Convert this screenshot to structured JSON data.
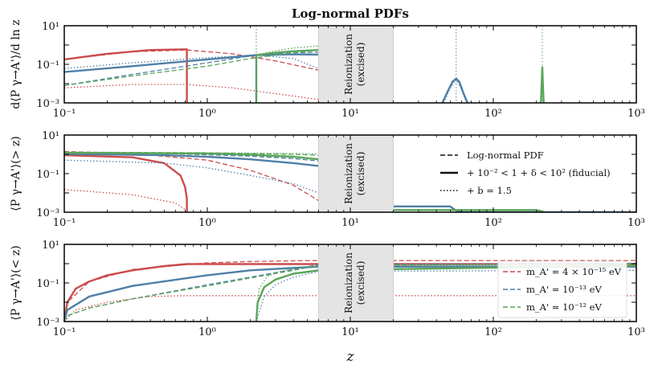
{
  "figure": {
    "title": "Log-normal PDFs",
    "xlabel": "z",
    "reionization_label_1": "Reionization",
    "reionization_label_2": "(excised)"
  },
  "colors": {
    "red": "#cc4c4c",
    "blue": "#4f7fa6",
    "green": "#5aa55a",
    "band": "#e4e4e4"
  },
  "chart_data": [
    {
      "type": "line",
      "panel": "top",
      "ylabel": "d⟨P γ→A'⟩/d ln z",
      "xscale": "log",
      "yscale": "log",
      "xlim": [
        0.1,
        1000
      ],
      "ylim": [
        0.001,
        10
      ],
      "x_ticks": [
        "10⁻¹",
        "10⁰",
        "10¹",
        "10²",
        "10³"
      ],
      "y_ticks": [
        "10⁻³",
        "10⁻¹",
        "10¹"
      ],
      "excised_band": [
        6,
        20
      ],
      "series": [
        {
          "name": "red-solid",
          "color": "red",
          "style": "solid",
          "x": [
            0.1,
            0.2,
            0.4,
            0.72,
            0.72
          ],
          "y": [
            0.18,
            0.35,
            0.55,
            0.6,
            0.001
          ]
        },
        {
          "name": "red-dashed",
          "color": "red",
          "style": "dashed",
          "x": [
            0.1,
            0.3,
            0.72,
            1.5,
            3,
            6
          ],
          "y": [
            0.18,
            0.45,
            0.55,
            0.35,
            0.15,
            0.05
          ]
        },
        {
          "name": "red-dotted",
          "color": "red",
          "style": "dotted",
          "x": [
            0.1,
            0.3,
            0.72,
            1.5,
            3,
            6
          ],
          "y": [
            0.006,
            0.009,
            0.009,
            0.006,
            0.003,
            0.0015
          ]
        },
        {
          "name": "blue-solid",
          "color": "blue",
          "style": "solid",
          "x": [
            0.1,
            0.3,
            1,
            2.2,
            4,
            6
          ],
          "y": [
            0.04,
            0.08,
            0.18,
            0.3,
            0.33,
            0.32
          ]
        },
        {
          "name": "blue-dashed",
          "color": "blue",
          "style": "dashed",
          "x": [
            0.1,
            0.3,
            1,
            2.2,
            4,
            6
          ],
          "y": [
            0.008,
            0.03,
            0.12,
            0.3,
            0.4,
            0.42
          ]
        },
        {
          "name": "blue-dotted",
          "color": "blue",
          "style": "dotted",
          "x": [
            0.1,
            0.3,
            1,
            2.2,
            4,
            6
          ],
          "y": [
            0.06,
            0.12,
            0.22,
            0.3,
            0.2,
            0.06
          ]
        },
        {
          "name": "blue-solid-peak",
          "color": "blue",
          "style": "solid",
          "x": [
            44,
            48,
            52,
            55,
            58,
            62,
            66
          ],
          "y": [
            0.001,
            0.004,
            0.013,
            0.018,
            0.012,
            0.003,
            0.001
          ]
        },
        {
          "name": "blue-dotted-peak",
          "color": "blue",
          "style": "dotted",
          "x": [
            45,
            50,
            55,
            60,
            65
          ],
          "y": [
            0.001,
            0.006,
            0.016,
            0.005,
            0.001
          ]
        },
        {
          "name": "green-solid",
          "color": "green",
          "style": "solid",
          "x": [
            2.2,
            2.2,
            3,
            4,
            6
          ],
          "y": [
            0.001,
            0.3,
            0.4,
            0.48,
            0.55
          ]
        },
        {
          "name": "green-dashed",
          "color": "green",
          "style": "dashed",
          "x": [
            0.1,
            0.3,
            1,
            2,
            4,
            6
          ],
          "y": [
            0.008,
            0.025,
            0.08,
            0.2,
            0.4,
            0.55
          ]
        },
        {
          "name": "green-dotted",
          "color": "green",
          "style": "dotted",
          "x": [
            2.2,
            3,
            4,
            6
          ],
          "y": [
            0.3,
            0.5,
            0.7,
            0.9
          ]
        },
        {
          "name": "green-solid-peak",
          "color": "green",
          "style": "solid",
          "x": [
            215,
            218,
            220,
            222,
            225
          ],
          "y": [
            0.001,
            0.01,
            0.07,
            0.01,
            0.001
          ]
        }
      ],
      "vlines": [
        {
          "x": 2.2,
          "color": "blue",
          "style": "dotted"
        },
        {
          "x": 55,
          "color": "blue",
          "style": "dotted"
        },
        {
          "x": 220,
          "color": "green",
          "style": "dotted"
        }
      ]
    },
    {
      "type": "line",
      "panel": "middle",
      "ylabel": "⟨P γ→A'⟩(> z)",
      "xscale": "log",
      "yscale": "log",
      "xlim": [
        0.1,
        1000
      ],
      "ylim": [
        0.001,
        10
      ],
      "x_ticks": [
        "10⁻¹",
        "10⁰",
        "10¹",
        "10²",
        "10³"
      ],
      "y_ticks": [
        "10⁻³",
        "10⁻¹",
        "10¹"
      ],
      "excised_band": [
        6,
        20
      ],
      "series": [
        {
          "name": "red-solid",
          "color": "red",
          "style": "solid",
          "x": [
            0.1,
            0.3,
            0.5,
            0.65,
            0.7,
            0.72,
            0.72
          ],
          "y": [
            0.9,
            0.7,
            0.35,
            0.08,
            0.02,
            0.005,
            0.001
          ]
        },
        {
          "name": "red-dashed",
          "color": "red",
          "style": "dashed",
          "x": [
            0.1,
            0.3,
            1,
            2,
            4,
            6
          ],
          "y": [
            1.4,
            1.1,
            0.5,
            0.15,
            0.025,
            0.004
          ]
        },
        {
          "name": "red-dotted",
          "color": "red",
          "style": "dotted",
          "x": [
            0.1,
            0.3,
            0.6,
            0.72
          ],
          "y": [
            0.015,
            0.008,
            0.003,
            0.0012
          ]
        },
        {
          "name": "blue-solid",
          "color": "blue",
          "style": "solid",
          "x": [
            0.1,
            0.5,
            1,
            2,
            4,
            6
          ],
          "y": [
            1.05,
            0.9,
            0.75,
            0.55,
            0.35,
            0.25
          ]
        },
        {
          "name": "blue-solid-tail",
          "color": "blue",
          "style": "solid",
          "x": [
            20,
            50,
            55,
            60,
            1000
          ],
          "y": [
            0.002,
            0.002,
            0.0012,
            0.001,
            0.001
          ]
        },
        {
          "name": "blue-dashed",
          "color": "blue",
          "style": "dashed",
          "x": [
            0.1,
            0.5,
            1,
            2,
            4,
            6
          ],
          "y": [
            1.2,
            1.1,
            0.95,
            0.8,
            0.6,
            0.45
          ]
        },
        {
          "name": "blue-dotted",
          "color": "blue",
          "style": "dotted",
          "x": [
            0.1,
            0.5,
            1,
            2,
            4,
            6
          ],
          "y": [
            0.5,
            0.35,
            0.2,
            0.08,
            0.03,
            0.01
          ]
        },
        {
          "name": "green-solid",
          "color": "green",
          "style": "solid",
          "x": [
            0.1,
            1,
            2,
            4,
            6
          ],
          "y": [
            1.2,
            1.1,
            0.95,
            0.75,
            0.55
          ]
        },
        {
          "name": "green-solid-tail",
          "color": "green",
          "style": "solid",
          "x": [
            20,
            200,
            222,
            225
          ],
          "y": [
            0.0013,
            0.0013,
            0.0011,
            0.001
          ]
        },
        {
          "name": "green-dashed",
          "color": "green",
          "style": "dashed",
          "x": [
            0.1,
            1,
            2,
            4,
            6
          ],
          "y": [
            1.3,
            1.2,
            1.1,
            1,
            0.9
          ]
        },
        {
          "name": "green-dotted",
          "color": "green",
          "style": "dotted",
          "x": [
            0.1,
            1,
            2,
            4,
            6
          ],
          "y": [
            1.3,
            1.2,
            1.15,
            1.1,
            1.05
          ]
        }
      ],
      "legend": {
        "location": "right",
        "entries": [
          {
            "style": "dashed",
            "label": "Log-normal PDF"
          },
          {
            "style": "solid",
            "label": "+ 10⁻² < 1 + δ < 10² (fiducial)"
          },
          {
            "style": "dotted",
            "label": "+ b = 1.5"
          }
        ]
      }
    },
    {
      "type": "line",
      "panel": "bottom",
      "ylabel": "⟨P γ→A'⟩(< z)",
      "xscale": "log",
      "yscale": "log",
      "xlim": [
        0.1,
        1000
      ],
      "ylim": [
        0.001,
        10
      ],
      "x_ticks": [
        "10⁻¹",
        "10⁰",
        "10¹",
        "10²",
        "10³"
      ],
      "y_ticks": [
        "10⁻³",
        "10⁻¹",
        "10¹"
      ],
      "excised_band": [
        6,
        20
      ],
      "series": [
        {
          "name": "red-solid",
          "color": "red",
          "style": "solid",
          "x": [
            0.1,
            0.105,
            0.12,
            0.15,
            0.2,
            0.3,
            0.5,
            0.72,
            1000
          ],
          "y": [
            0.001,
            0.01,
            0.05,
            0.12,
            0.25,
            0.45,
            0.75,
            0.95,
            0.95
          ]
        },
        {
          "name": "red-dashed",
          "color": "red",
          "style": "dashed",
          "x": [
            0.1,
            0.105,
            0.15,
            0.3,
            1,
            2,
            4,
            6,
            1000
          ],
          "y": [
            0.001,
            0.01,
            0.12,
            0.5,
            1.1,
            1.3,
            1.4,
            1.45,
            1.45
          ]
        },
        {
          "name": "red-dotted",
          "color": "red",
          "style": "dotted",
          "x": [
            0.1,
            0.12,
            0.2,
            0.4,
            0.72,
            1000
          ],
          "y": [
            0.001,
            0.004,
            0.01,
            0.02,
            0.022,
            0.022
          ]
        },
        {
          "name": "blue-solid",
          "color": "blue",
          "style": "solid",
          "x": [
            0.1,
            0.105,
            0.15,
            0.3,
            1,
            2,
            4,
            6,
            1000
          ],
          "y": [
            0.001,
            0.004,
            0.02,
            0.07,
            0.25,
            0.45,
            0.6,
            0.7,
            0.7
          ]
        },
        {
          "name": "blue-dashed",
          "color": "blue",
          "style": "dashed",
          "x": [
            0.1,
            0.105,
            0.15,
            0.3,
            1,
            2,
            4,
            6,
            1000
          ],
          "y": [
            0.001,
            0.002,
            0.005,
            0.015,
            0.08,
            0.2,
            0.5,
            0.9,
            1.05
          ]
        },
        {
          "name": "blue-dotted",
          "color": "blue",
          "style": "dotted",
          "x": [
            2.2,
            2.5,
            3,
            4,
            6,
            1000
          ],
          "y": [
            0.001,
            0.02,
            0.08,
            0.2,
            0.4,
            0.45
          ]
        },
        {
          "name": "green-solid",
          "color": "green",
          "style": "solid",
          "x": [
            2.2,
            2.25,
            2.5,
            3,
            4,
            6,
            1000
          ],
          "y": [
            0.001,
            0.01,
            0.06,
            0.15,
            0.3,
            0.45,
            0.8
          ]
        },
        {
          "name": "green-dashed",
          "color": "green",
          "style": "dashed",
          "x": [
            0.1,
            0.105,
            0.15,
            0.3,
            1,
            2,
            4,
            6,
            1000
          ],
          "y": [
            0.001,
            0.002,
            0.005,
            0.015,
            0.07,
            0.18,
            0.45,
            0.8,
            1.0
          ]
        },
        {
          "name": "green-dotted",
          "color": "green",
          "style": "dotted",
          "x": [
            2.2,
            2.3,
            2.6,
            3,
            4,
            6,
            1000
          ],
          "y": [
            0.001,
            0.05,
            0.2,
            0.35,
            0.55,
            0.75,
            0.95
          ]
        }
      ],
      "legend": {
        "location": "lower-right",
        "entries": [
          {
            "color": "red",
            "style": "dashed",
            "label": "m_A' = 4 × 10⁻¹⁵ eV"
          },
          {
            "color": "blue",
            "style": "dashed",
            "label": "m_A' = 10⁻¹³ eV"
          },
          {
            "color": "green",
            "style": "dashed",
            "label": "m_A' = 10⁻¹² eV"
          }
        ]
      }
    }
  ]
}
